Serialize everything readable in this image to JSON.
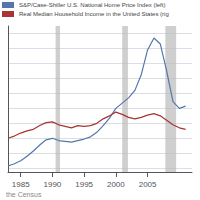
{
  "chart_data": {
    "type": "line",
    "x": [
      1983,
      1984,
      1985,
      1986,
      1987,
      1988,
      1989,
      1990,
      1991,
      1992,
      1993,
      1994,
      1995,
      1996,
      1997,
      1998,
      1999,
      2000,
      2001,
      2002,
      2003,
      2004,
      2005,
      2006,
      2007,
      2008,
      2009,
      2010,
      2011
    ],
    "series": [
      {
        "name": "S&P/Case-Shiller U.S. National Home Price Index (left)",
        "color": "#5577aa",
        "values": [
          63,
          66,
          70,
          76,
          83,
          91,
          98,
          100,
          97,
          96,
          95,
          97,
          99,
          102,
          108,
          117,
          127,
          140,
          147,
          154,
          164,
          185,
          218,
          234,
          226,
          190,
          149,
          140,
          143
        ]
      },
      {
        "name": "Real Median Household Income in the United States (rig",
        "color": "#aa3333",
        "values": [
          100,
          103,
          107,
          110,
          112,
          117,
          121,
          122,
          118,
          116,
          114,
          117,
          116,
          117,
          120,
          126,
          130,
          135,
          132,
          128,
          126,
          128,
          131,
          133,
          130,
          124,
          118,
          114,
          112
        ]
      }
    ],
    "xlim": [
      1983,
      2012
    ],
    "xticks": [
      1985,
      1990,
      1995,
      2000,
      2005
    ],
    "ylim": [
      55,
      250
    ],
    "yticks": [
      60,
      80,
      100,
      120,
      140,
      160,
      180,
      200,
      220,
      240
    ],
    "grid": true,
    "tick_labels": "x",
    "legend": "upper left",
    "recession_bands": {
      "color": "#bbbbbb",
      "ranges": [
        [
          1990.5,
          1991.2
        ],
        [
          2001.0,
          2001.9
        ],
        [
          2007.8,
          2009.5
        ]
      ]
    },
    "annotations": [
      "the Census"
    ]
  }
}
